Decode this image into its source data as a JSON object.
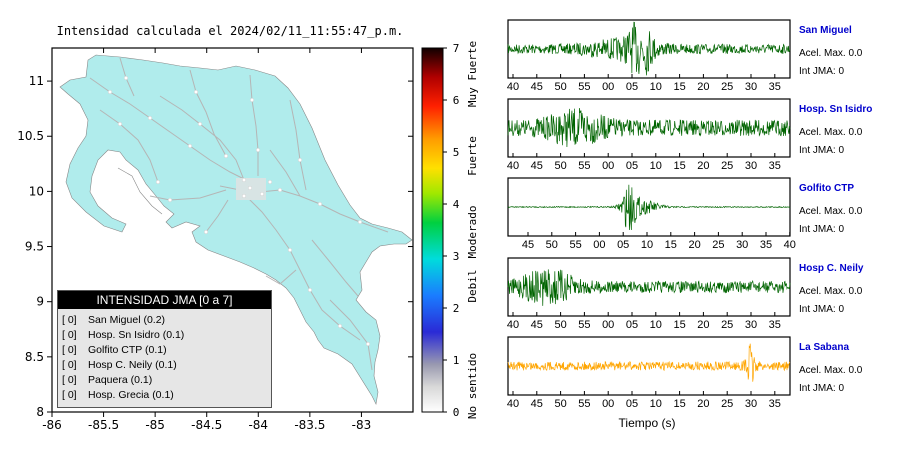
{
  "map": {
    "title": "Intensidad calculada el 2024/02/11_11:55:47_p.m.",
    "x_ticks": [
      "-86",
      "-85.5",
      "-85",
      "-84.5",
      "-84",
      "-83.5",
      "-83"
    ],
    "y_ticks": [
      "11",
      "10.5",
      "10",
      "9.5",
      "9",
      "8.5",
      "8"
    ],
    "xlim": [
      -86,
      -82.5
    ],
    "ylim": [
      8,
      11.3
    ],
    "land_color": "#b0ecec",
    "road_color": "#b5b5b5"
  },
  "colorbar": {
    "ticks": [
      "0",
      "1",
      "2",
      "3",
      "4",
      "5",
      "6",
      "7"
    ],
    "labels": [
      "No sentido",
      "Debil",
      "Moderado",
      "Fuerte",
      "Muy Fuerte"
    ],
    "range": [
      0,
      7
    ]
  },
  "legend": {
    "title": "INTENSIDAD JMA [0 a 7]",
    "items": [
      {
        "level": "[ 0]",
        "name": "San Miguel (0.2)"
      },
      {
        "level": "[ 0]",
        "name": "Hosp. Sn Isidro (0.1)"
      },
      {
        "level": "[ 0]",
        "name": "Golfito CTP (0.1)"
      },
      {
        "level": "[ 0]",
        "name": "Hosp C. Neily (0.1)"
      },
      {
        "level": "[ 0]",
        "name": "Paquera (0.1)"
      },
      {
        "level": "[ 0]",
        "name": "Hosp. Grecia (0.1)"
      }
    ]
  },
  "traces": [
    {
      "station": "San Miguel",
      "accel": "Acel. Max. 0.0",
      "int": "Int JMA: 0",
      "color": "#006400",
      "ticks": [
        "40",
        "45",
        "50",
        "55",
        "00",
        "05",
        "10",
        "15",
        "20",
        "25",
        "30",
        "35"
      ]
    },
    {
      "station": "Hosp. Sn Isidro",
      "accel": "Acel. Max. 0.0",
      "int": "Int JMA: 0",
      "color": "#006400",
      "ticks": [
        "40",
        "45",
        "50",
        "55",
        "00",
        "05",
        "10",
        "15",
        "20",
        "25",
        "30",
        "35"
      ]
    },
    {
      "station": "Golfito CTP",
      "accel": "Acel. Max. 0.0",
      "int": "Int JMA: 0",
      "color": "#006400",
      "ticks": [
        "45",
        "50",
        "55",
        "00",
        "05",
        "10",
        "15",
        "20",
        "25",
        "30",
        "35",
        "40"
      ]
    },
    {
      "station": "Hosp C. Neily",
      "accel": "Acel. Max. 0.0",
      "int": "Int JMA: 0",
      "color": "#006400",
      "ticks": [
        "40",
        "45",
        "50",
        "55",
        "00",
        "05",
        "10",
        "15",
        "20",
        "25",
        "30",
        "35"
      ]
    },
    {
      "station": "La Sabana",
      "accel": "Acel. Max. 0.0",
      "int": "Int JMA: 0",
      "color": "#ffa500",
      "ticks": [
        "40",
        "45",
        "50",
        "55",
        "00",
        "05",
        "10",
        "15",
        "20",
        "25",
        "30",
        "35"
      ]
    }
  ],
  "traces_xlabel": "Tiempo (s)",
  "station_label_color": "#0000cc"
}
